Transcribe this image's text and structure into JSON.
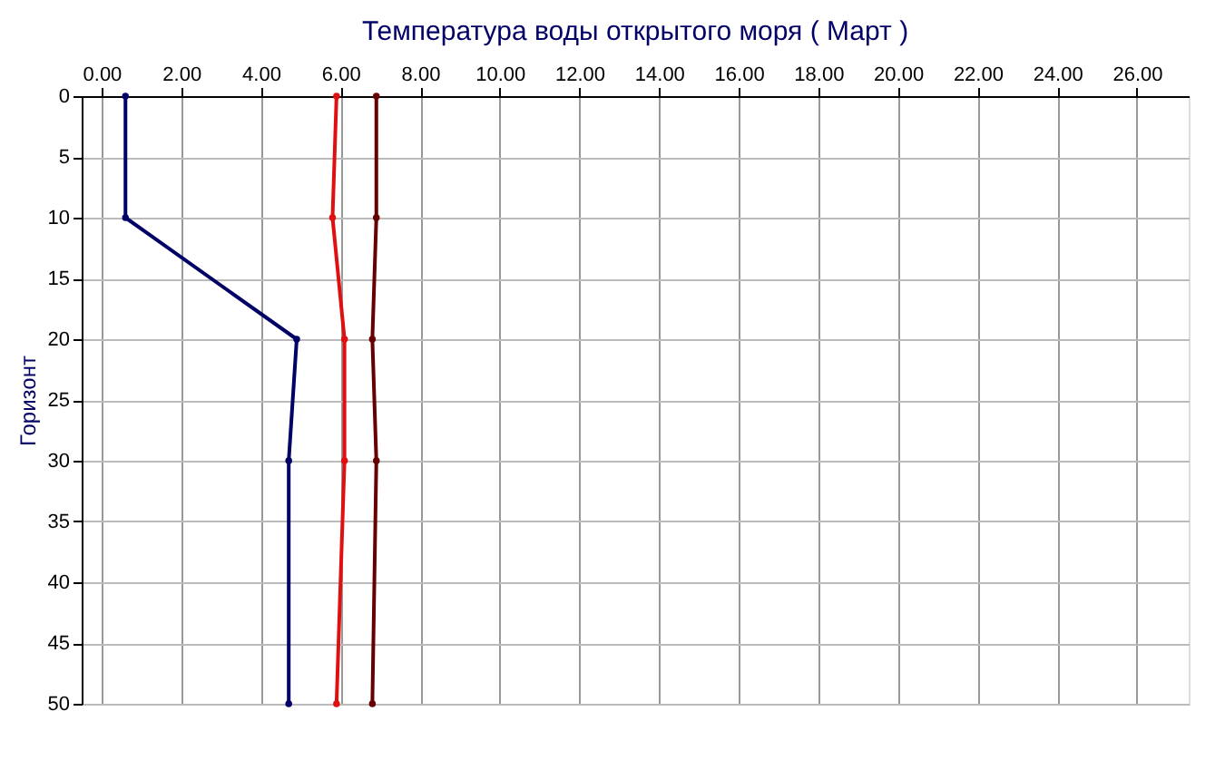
{
  "chart_data": {
    "type": "line",
    "title": "Температура воды открытого моря     ( Март )",
    "ylabel": "Горизонт",
    "series": [
      {
        "color": "#000066",
        "x": [
          0.6,
          0.6,
          4.9,
          4.7,
          4.7
        ],
        "values": [
          0,
          10,
          20,
          30,
          50
        ]
      },
      {
        "color": "#e01010",
        "x": [
          5.9,
          5.8,
          6.1,
          6.1,
          5.9
        ],
        "values": [
          0,
          10,
          20,
          30,
          50
        ]
      },
      {
        "color": "#660000",
        "x": [
          6.9,
          6.9,
          6.8,
          6.9,
          6.8
        ],
        "values": [
          0,
          10,
          20,
          30,
          50
        ]
      }
    ],
    "xlim": [
      -0.5,
      27.3
    ],
    "xticks": [
      {
        "value": 0,
        "label": "0.00"
      },
      {
        "value": 2,
        "label": "2.00"
      },
      {
        "value": 4,
        "label": "4.00"
      },
      {
        "value": 6,
        "label": "6.00"
      },
      {
        "value": 8,
        "label": "8.00"
      },
      {
        "value": 10,
        "label": "10.00"
      },
      {
        "value": 12,
        "label": "12.00"
      },
      {
        "value": 14,
        "label": "14.00"
      },
      {
        "value": 16,
        "label": "16.00"
      },
      {
        "value": 18,
        "label": "18.00"
      },
      {
        "value": 20,
        "label": "20.00"
      },
      {
        "value": 22,
        "label": "22.00"
      },
      {
        "value": 24,
        "label": "24.00"
      },
      {
        "value": 26,
        "label": "26.00"
      }
    ],
    "ylim": [
      50,
      0
    ],
    "yticks": [
      0,
      5,
      10,
      15,
      20,
      25,
      30,
      35,
      40,
      45,
      50
    ],
    "grid": true,
    "marker": "circle",
    "line_style": "solid"
  }
}
